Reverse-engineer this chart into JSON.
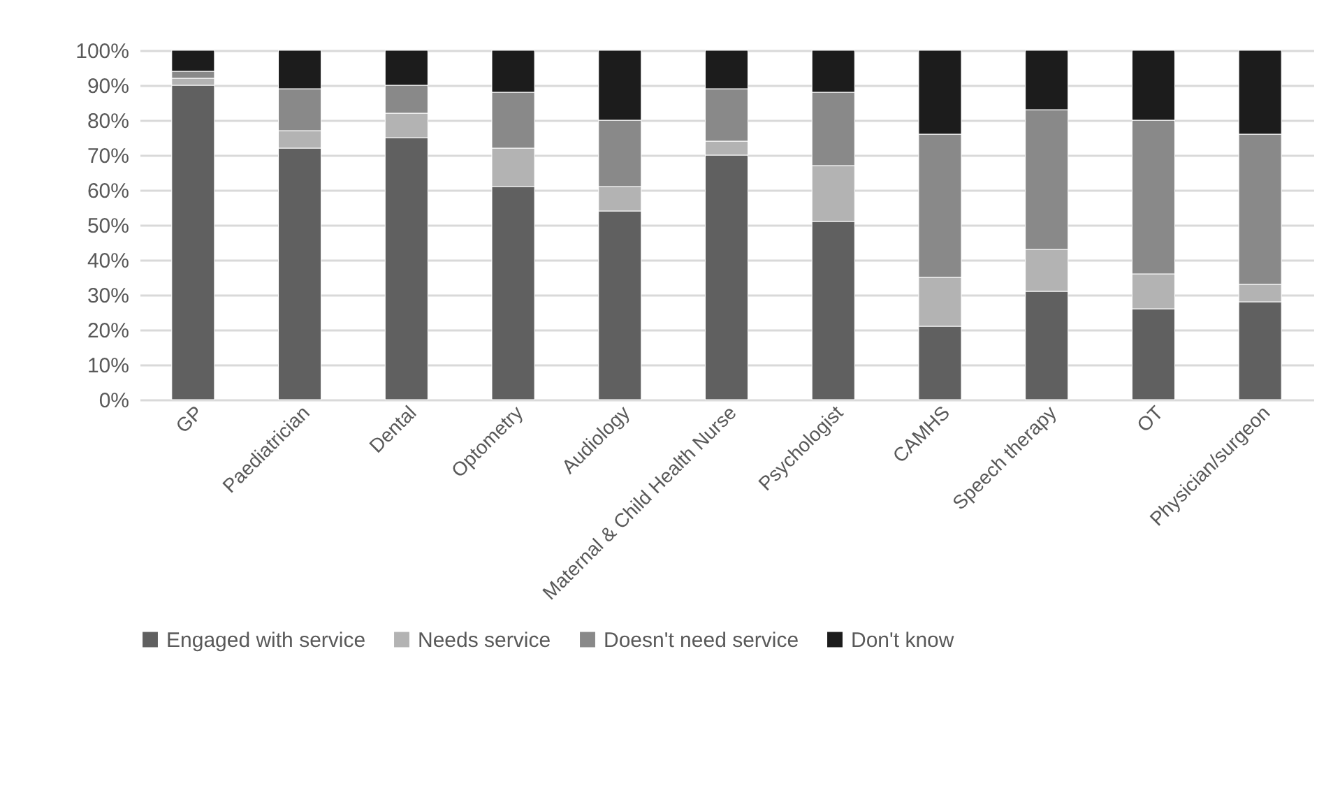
{
  "chart_data": {
    "type": "bar",
    "stacked": true,
    "categories": [
      "GP",
      "Paediatrician",
      "Dental",
      "Optometry",
      "Audiology",
      "Maternal & Child Health Nurse",
      "Psychologist",
      "CAMHS",
      "Speech therapy",
      "OT",
      "Physician/surgeon"
    ],
    "series": [
      {
        "name": "Engaged with service",
        "color": "#606060",
        "values": [
          90,
          72,
          75,
          61,
          54,
          70,
          51,
          21,
          31,
          26,
          28
        ]
      },
      {
        "name": "Needs service",
        "color": "#b3b3b3",
        "values": [
          2,
          5,
          7,
          11,
          7,
          4,
          16,
          14,
          12,
          10,
          5
        ]
      },
      {
        "name": "Doesn't need service",
        "color": "#898989",
        "values": [
          2,
          12,
          8,
          16,
          19,
          15,
          21,
          41,
          40,
          44,
          43
        ]
      },
      {
        "name": "Don't know",
        "color": "#1c1c1c",
        "values": [
          6,
          11,
          10,
          12,
          20,
          11,
          12,
          24,
          17,
          20,
          24
        ]
      }
    ],
    "ylim": [
      0,
      100
    ],
    "yticks": [
      {
        "value": 0,
        "label": "0%"
      },
      {
        "value": 10,
        "label": "10%"
      },
      {
        "value": 20,
        "label": "20%"
      },
      {
        "value": 30,
        "label": "30%"
      },
      {
        "value": 40,
        "label": "40%"
      },
      {
        "value": 50,
        "label": "50%"
      },
      {
        "value": 60,
        "label": "60%"
      },
      {
        "value": 70,
        "label": "70%"
      },
      {
        "value": 80,
        "label": "80%"
      },
      {
        "value": 90,
        "label": "90%"
      },
      {
        "value": 100,
        "label": "100%"
      }
    ],
    "grid": "y",
    "legend": "bottom"
  }
}
